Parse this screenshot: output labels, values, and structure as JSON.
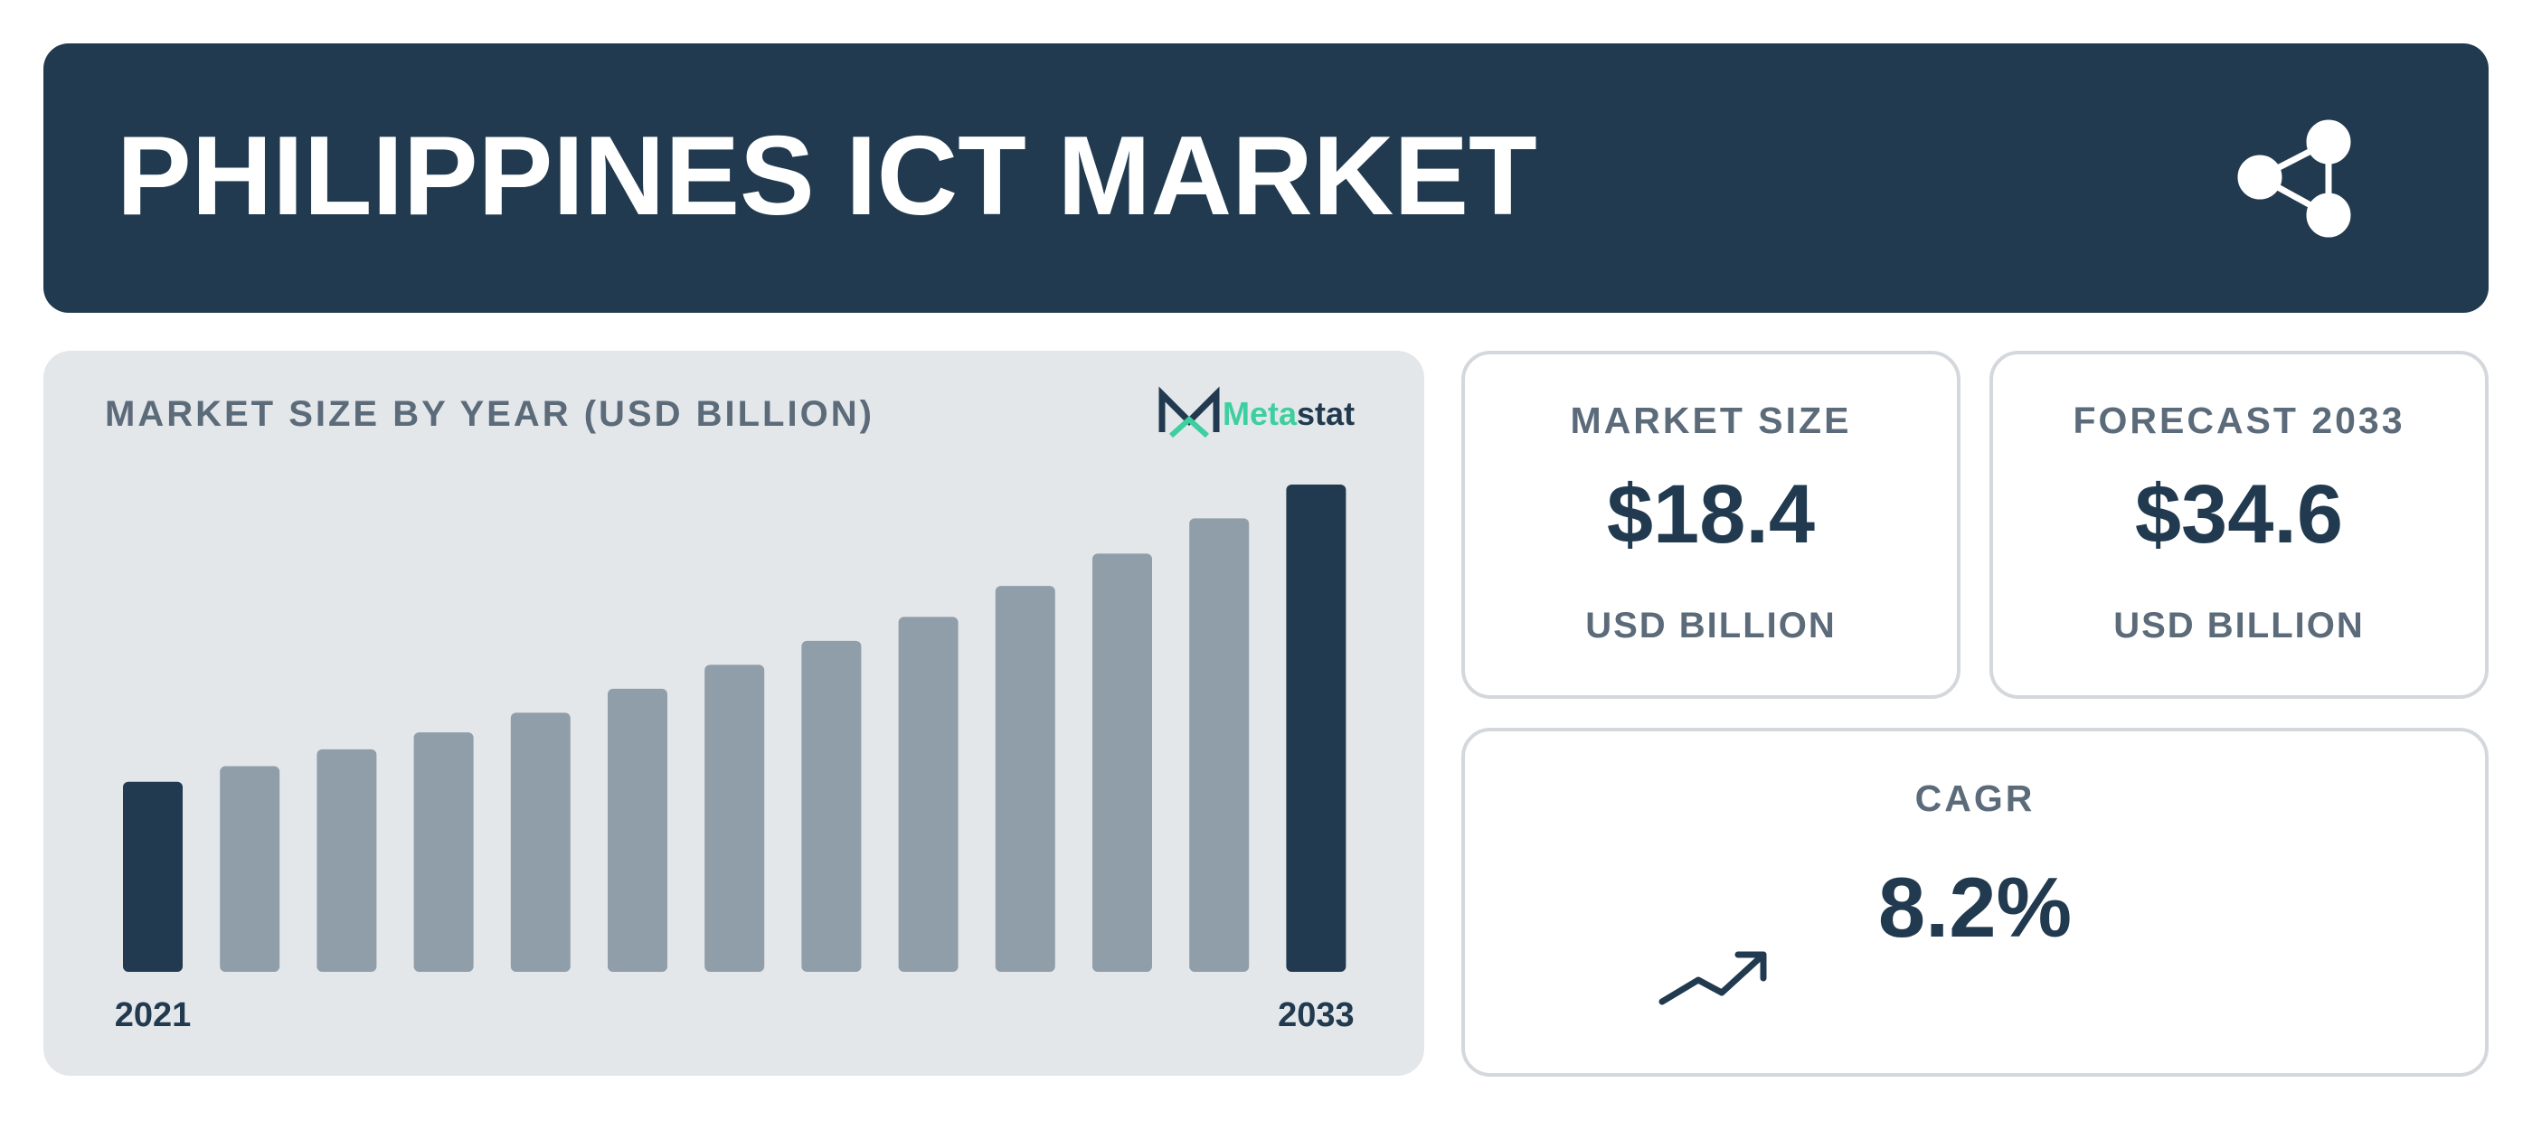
{
  "header": {
    "title": "PHILIPPINES ICT MARKET"
  },
  "chart_data": {
    "type": "bar",
    "title": "MARKET SIZE BY YEAR (USD BILLION)",
    "categories": [
      "2021",
      null,
      null,
      null,
      null,
      null,
      null,
      null,
      null,
      null,
      null,
      null,
      "2033"
    ],
    "values": [
      13.5,
      14.6,
      15.8,
      17.0,
      18.4,
      20.1,
      21.8,
      23.5,
      25.2,
      27.4,
      29.7,
      32.2,
      34.6
    ],
    "colors": [
      "#213a4f",
      "#909ea9",
      "#909ea9",
      "#909ea9",
      "#909ea9",
      "#909ea9",
      "#909ea9",
      "#909ea9",
      "#909ea9",
      "#909ea9",
      "#909ea9",
      "#909ea9",
      "#213a4f"
    ]
  },
  "logo": {
    "part1": "Meta",
    "part2": "stat"
  },
  "cards": [
    {
      "label": "MARKET SIZE",
      "value": "$18.4",
      "unit": "USD BILLION"
    },
    {
      "label": "FORECAST 2033",
      "value": "$34.6",
      "unit": "USD BILLION"
    }
  ],
  "cagr": {
    "label": "CAGR",
    "value": "8.2%"
  }
}
